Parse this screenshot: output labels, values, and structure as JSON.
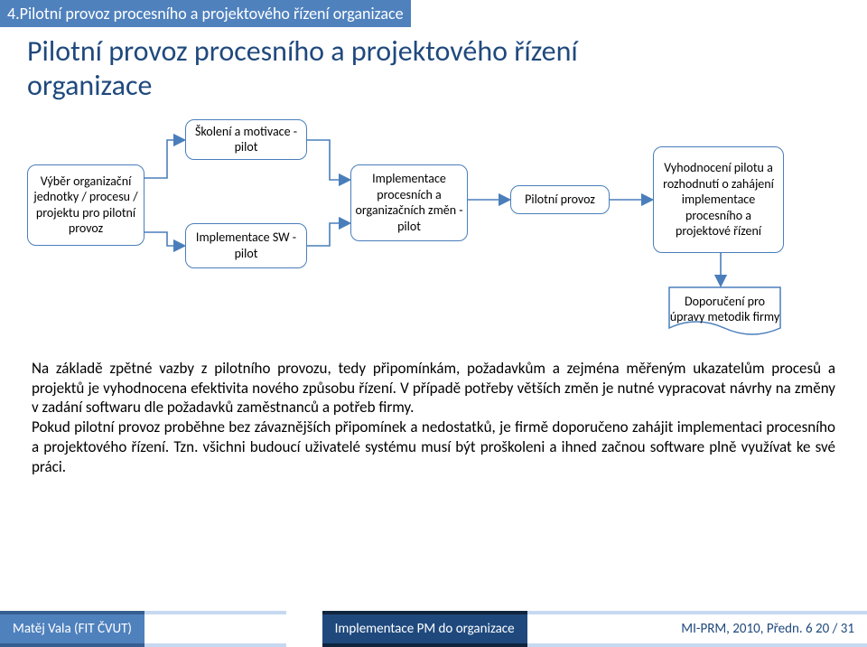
{
  "breadcrumb": "4.Pilotní provoz procesního a projektového řízení organizace",
  "title_line1": "Pilotní provoz procesního a projektového řízení",
  "title_line2": "organizace",
  "diagram": {
    "node_border": "#4a7ebb",
    "nodes": {
      "n1": "Výběr organizační jednotky / procesu / projektu pro pilotní provoz",
      "n2": "Školení a motivace - pilot",
      "n3": "Implementace SW - pilot",
      "n4": "Implementace procesních a organizačních změn - pilot",
      "n5": "Pilotní provoz",
      "n6": "Vyhodnocení pilotu a rozhodnutí o zahájení implementace procesního a projektové řízení",
      "doc": "Doporučení pro úpravy metodik firmy"
    }
  },
  "body": "Na základě zpětné vazby z pilotního provozu, tedy připomínkám, požadavkům a zejména měřeným ukazatelům procesů a projektů je vyhodnocena efektivita nového způsobu řízení. V případě potřeby větších změn je nutné vypracovat návrhy na změny v zadání softwaru dle požadavků zaměstnanců a potřeb firmy.\nPokud pilotní provoz proběhne bez závaznějších připomínek a nedostatků, je firmě doporučeno zahájit implementaci procesního a projektového řízení. Tzn. všichni budoucí uživatelé systému musí být proškoleni a ihned začnou software plně využívat ke své práci.",
  "footer": {
    "left": "Matěj Vala (FIT ČVUT)",
    "mid": "Implementace PM do organizace",
    "right": "MI-PRM, 2010, Předn. 6    20 / 31"
  },
  "colors": {
    "blue_dark": "#1f497d",
    "blue_mid": "#4f81bd",
    "blue_border": "#4a7ebb"
  }
}
